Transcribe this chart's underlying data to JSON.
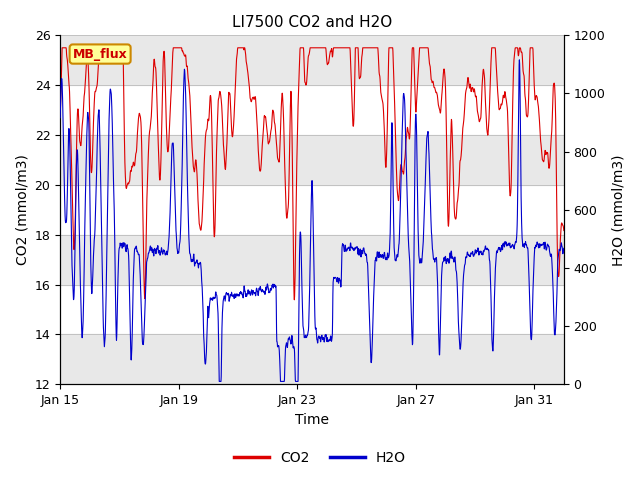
{
  "title": "LI7500 CO2 and H2O",
  "xlabel": "Time",
  "ylabel_left": "CO2 (mmol/m3)",
  "ylabel_right": "H2O (mmol/m3)",
  "ylim_left": [
    12,
    26
  ],
  "ylim_right": [
    0,
    1200
  ],
  "yticks_left": [
    12,
    14,
    16,
    18,
    20,
    22,
    24,
    26
  ],
  "yticks_right": [
    0,
    200,
    400,
    600,
    800,
    1000,
    1200
  ],
  "xtick_labels": [
    "Jan 15",
    "Jan 19",
    "Jan 23",
    "Jan 27",
    "Jan 31"
  ],
  "xtick_positions": [
    0,
    4,
    8,
    12,
    16
  ],
  "co2_color": "#dd0000",
  "h2o_color": "#0000cc",
  "annotation_text": "MB_flux",
  "annotation_bg": "#ffff99",
  "annotation_border": "#cc8800",
  "legend_co2": "CO2",
  "legend_h2o": "H2O",
  "grid_color": "#bbbbbb",
  "band_color_light": "#e8e8e8",
  "band_color_white": "#ffffff",
  "title_fontsize": 11,
  "axis_fontsize": 10,
  "tick_fontsize": 9,
  "total_days": 17,
  "fig_width": 6.4,
  "fig_height": 4.8,
  "dpi": 100
}
